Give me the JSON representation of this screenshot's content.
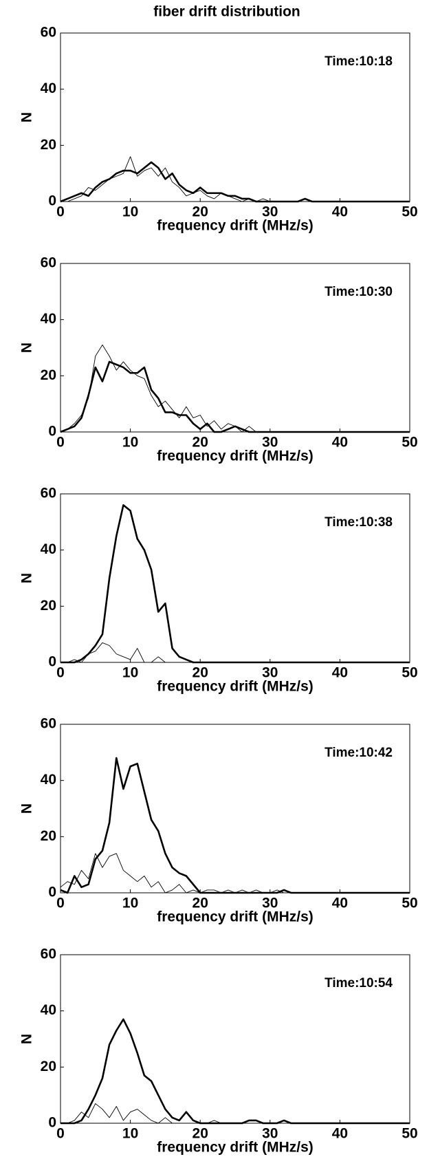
{
  "chart_data": [
    {
      "type": "line",
      "title": "fiber drift distribution",
      "annotation": "Time:10:18",
      "xlabel": "frequency drift (MHz/s)",
      "ylabel": "N",
      "xlim": [
        0,
        50
      ],
      "ylim": [
        0,
        60
      ],
      "xticks": [
        0,
        10,
        20,
        30,
        40,
        50
      ],
      "yticks": [
        0,
        20,
        40,
        60
      ],
      "x": [
        0,
        1,
        2,
        3,
        4,
        5,
        6,
        7,
        8,
        9,
        10,
        11,
        12,
        13,
        14,
        15,
        16,
        17,
        18,
        19,
        20,
        21,
        22,
        23,
        24,
        25,
        26,
        27,
        28,
        29,
        30,
        31,
        32,
        33,
        34,
        35,
        36,
        37,
        38,
        39,
        40,
        41,
        42,
        43,
        44,
        45,
        46,
        47,
        48,
        49,
        50
      ],
      "series": [
        {
          "color": "#000000",
          "linewidth": 2.6,
          "values": [
            0,
            1,
            2,
            3,
            2,
            5,
            7,
            8,
            10,
            11,
            11,
            10,
            12,
            14,
            12,
            8,
            10,
            6,
            4,
            3,
            5,
            3,
            3,
            3,
            2,
            2,
            1,
            1,
            0,
            0,
            0,
            0,
            0,
            0,
            0,
            1,
            0,
            0,
            0,
            0,
            0,
            0,
            0,
            0,
            0,
            0,
            0,
            0,
            0,
            0,
            0
          ]
        },
        {
          "color": "#000000",
          "linewidth": 0.9,
          "values": [
            0,
            0,
            1,
            2,
            5,
            4,
            6,
            8,
            9,
            10,
            16,
            9,
            11,
            12,
            9,
            12,
            7,
            5,
            2,
            3,
            4,
            2,
            1,
            3,
            2,
            1,
            0,
            1,
            0,
            1,
            0,
            0,
            0,
            0,
            0,
            0,
            0,
            0,
            0,
            0,
            0,
            0,
            0,
            0,
            0,
            0,
            0,
            0,
            0,
            0,
            0
          ]
        }
      ]
    },
    {
      "type": "line",
      "annotation": "Time:10:30",
      "xlabel": "frequency drift (MHz/s)",
      "ylabel": "N",
      "xlim": [
        0,
        50
      ],
      "ylim": [
        0,
        60
      ],
      "xticks": [
        0,
        10,
        20,
        30,
        40,
        50
      ],
      "yticks": [
        0,
        20,
        40,
        60
      ],
      "x": [
        0,
        1,
        2,
        3,
        4,
        5,
        6,
        7,
        8,
        9,
        10,
        11,
        12,
        13,
        14,
        15,
        16,
        17,
        18,
        19,
        20,
        21,
        22,
        23,
        24,
        25,
        26,
        27,
        28,
        29,
        30,
        31,
        32,
        33,
        34,
        35,
        36,
        37,
        38,
        39,
        40,
        41,
        42,
        43,
        44,
        45,
        46,
        47,
        48,
        49,
        50
      ],
      "series": [
        {
          "color": "#000000",
          "linewidth": 2.6,
          "values": [
            0,
            1,
            2,
            5,
            13,
            23,
            18,
            25,
            24,
            23,
            21,
            21,
            23,
            15,
            12,
            7,
            7,
            6,
            6,
            3,
            1,
            3,
            0,
            0,
            1,
            2,
            1,
            0,
            0,
            0,
            0,
            0,
            0,
            0,
            0,
            0,
            0,
            0,
            0,
            0,
            0,
            0,
            0,
            0,
            0,
            0,
            0,
            0,
            0,
            0,
            0
          ]
        },
        {
          "color": "#000000",
          "linewidth": 0.9,
          "values": [
            0,
            1,
            3,
            6,
            12,
            27,
            31,
            27,
            22,
            25,
            22,
            20,
            19,
            13,
            9,
            11,
            8,
            5,
            9,
            5,
            6,
            2,
            4,
            1,
            3,
            2,
            0,
            2,
            0,
            0,
            0,
            0,
            0,
            0,
            0,
            0,
            0,
            0,
            0,
            0,
            0,
            0,
            0,
            0,
            0,
            0,
            0,
            0,
            0,
            0,
            0
          ]
        }
      ]
    },
    {
      "type": "line",
      "annotation": "Time:10:38",
      "xlabel": "frequency drift (MHz/s)",
      "ylabel": "N",
      "xlim": [
        0,
        50
      ],
      "ylim": [
        0,
        60
      ],
      "xticks": [
        0,
        10,
        20,
        30,
        40,
        50
      ],
      "yticks": [
        0,
        20,
        40,
        60
      ],
      "x": [
        0,
        1,
        2,
        3,
        4,
        5,
        6,
        7,
        8,
        9,
        10,
        11,
        12,
        13,
        14,
        15,
        16,
        17,
        18,
        19,
        20,
        21,
        22,
        23,
        24,
        25,
        26,
        27,
        28,
        29,
        30,
        31,
        32,
        33,
        34,
        35,
        36,
        37,
        38,
        39,
        40,
        41,
        42,
        43,
        44,
        45,
        46,
        47,
        48,
        49,
        50
      ],
      "series": [
        {
          "color": "#000000",
          "linewidth": 2.6,
          "values": [
            0,
            0,
            0,
            1,
            3,
            6,
            10,
            30,
            45,
            56,
            54,
            44,
            40,
            33,
            18,
            21,
            5,
            2,
            1,
            0,
            0,
            0,
            0,
            0,
            0,
            0,
            0,
            0,
            0,
            0,
            0,
            0,
            0,
            0,
            0,
            0,
            0,
            0,
            0,
            0,
            0,
            0,
            0,
            0,
            0,
            0,
            0,
            0,
            0,
            0,
            0
          ]
        },
        {
          "color": "#000000",
          "linewidth": 0.9,
          "values": [
            0,
            0,
            1,
            0,
            3,
            4,
            7,
            6,
            3,
            2,
            1,
            5,
            0,
            0,
            2,
            0,
            0,
            0,
            0,
            0,
            0,
            0,
            0,
            0,
            0,
            0,
            0,
            0,
            0,
            0,
            0,
            0,
            0,
            0,
            0,
            0,
            0,
            0,
            0,
            0,
            0,
            0,
            0,
            0,
            0,
            0,
            0,
            0,
            0,
            0,
            0
          ]
        }
      ]
    },
    {
      "type": "line",
      "annotation": "Time:10:42",
      "xlabel": "frequency drift (MHz/s)",
      "ylabel": "N",
      "xlim": [
        0,
        50
      ],
      "ylim": [
        0,
        60
      ],
      "xticks": [
        0,
        10,
        20,
        30,
        40,
        50
      ],
      "yticks": [
        0,
        20,
        40,
        60
      ],
      "x": [
        0,
        1,
        2,
        3,
        4,
        5,
        6,
        7,
        8,
        9,
        10,
        11,
        12,
        13,
        14,
        15,
        16,
        17,
        18,
        19,
        20,
        21,
        22,
        23,
        24,
        25,
        26,
        27,
        28,
        29,
        30,
        31,
        32,
        33,
        34,
        35,
        36,
        37,
        38,
        39,
        40,
        41,
        42,
        43,
        44,
        45,
        46,
        47,
        48,
        49,
        50
      ],
      "series": [
        {
          "color": "#000000",
          "linewidth": 2.6,
          "values": [
            1,
            0,
            6,
            2,
            3,
            12,
            15,
            25,
            48,
            37,
            45,
            46,
            36,
            26,
            22,
            14,
            9,
            7,
            6,
            3,
            0,
            0,
            0,
            0,
            0,
            0,
            0,
            0,
            0,
            0,
            0,
            0,
            1,
            0,
            0,
            0,
            0,
            0,
            0,
            0,
            0,
            0,
            0,
            0,
            0,
            0,
            0,
            0,
            0,
            0,
            0
          ]
        },
        {
          "color": "#000000",
          "linewidth": 0.9,
          "values": [
            2,
            4,
            3,
            8,
            5,
            14,
            9,
            13,
            14,
            8,
            6,
            4,
            6,
            2,
            4,
            0,
            1,
            3,
            0,
            1,
            0,
            1,
            1,
            0,
            1,
            0,
            1,
            0,
            1,
            0,
            0,
            1,
            0,
            0,
            0,
            0,
            0,
            0,
            0,
            0,
            0,
            0,
            0,
            0,
            0,
            0,
            0,
            0,
            0,
            0,
            0
          ]
        }
      ]
    },
    {
      "type": "line",
      "annotation": "Time:10:54",
      "xlabel": "frequency drift (MHz/s)",
      "ylabel": "N",
      "xlim": [
        0,
        50
      ],
      "ylim": [
        0,
        60
      ],
      "xticks": [
        0,
        10,
        20,
        30,
        40,
        50
      ],
      "yticks": [
        0,
        20,
        40,
        60
      ],
      "x": [
        0,
        1,
        2,
        3,
        4,
        5,
        6,
        7,
        8,
        9,
        10,
        11,
        12,
        13,
        14,
        15,
        16,
        17,
        18,
        19,
        20,
        21,
        22,
        23,
        24,
        25,
        26,
        27,
        28,
        29,
        30,
        31,
        32,
        33,
        34,
        35,
        36,
        37,
        38,
        39,
        40,
        41,
        42,
        43,
        44,
        45,
        46,
        47,
        48,
        49,
        50
      ],
      "series": [
        {
          "color": "#000000",
          "linewidth": 2.6,
          "values": [
            0,
            0,
            0,
            1,
            5,
            10,
            16,
            28,
            33,
            37,
            32,
            25,
            17,
            15,
            10,
            5,
            2,
            1,
            4,
            1,
            0,
            0,
            0,
            0,
            0,
            0,
            0,
            1,
            1,
            0,
            0,
            0,
            1,
            0,
            0,
            0,
            0,
            0,
            0,
            0,
            0,
            0,
            0,
            0,
            0,
            0,
            0,
            0,
            0,
            0,
            0
          ]
        },
        {
          "color": "#000000",
          "linewidth": 0.9,
          "values": [
            0,
            0,
            1,
            4,
            2,
            7,
            5,
            2,
            6,
            1,
            4,
            5,
            3,
            1,
            0,
            2,
            0,
            0,
            0,
            0,
            0,
            0,
            1,
            0,
            0,
            0,
            0,
            0,
            0,
            0,
            0,
            0,
            0,
            0,
            0,
            0,
            0,
            0,
            0,
            0,
            0,
            0,
            0,
            0,
            0,
            0,
            0,
            0,
            0,
            0,
            0
          ]
        }
      ]
    }
  ]
}
